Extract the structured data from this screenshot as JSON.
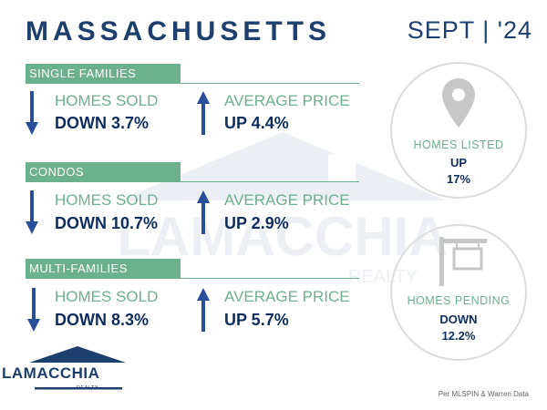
{
  "header": {
    "title": "MASSACHUSETTS",
    "date": "SEPT | '24"
  },
  "sections": [
    {
      "name": "SINGLE FAMILIES",
      "sold": {
        "label": "HOMES SOLD",
        "value": "DOWN 3.7%",
        "direction": "down"
      },
      "price": {
        "label": "AVERAGE PRICE",
        "value": "UP 4.4%",
        "direction": "up"
      }
    },
    {
      "name": "CONDOS",
      "sold": {
        "label": "HOMES SOLD",
        "value": "DOWN 10.7%",
        "direction": "down"
      },
      "price": {
        "label": "AVERAGE PRICE",
        "value": "UP 2.9%",
        "direction": "up"
      }
    },
    {
      "name": "MULTI-FAMILIES",
      "sold": {
        "label": "HOMES SOLD",
        "value": "DOWN 8.3%",
        "direction": "down"
      },
      "price": {
        "label": "AVERAGE PRICE",
        "value": "UP 5.7%",
        "direction": "up"
      }
    }
  ],
  "listed": {
    "label": "HOMES LISTED",
    "direction": "UP",
    "value": "17%",
    "icon": "map-pin-icon"
  },
  "pending": {
    "label": "HOMES PENDING",
    "direction": "DOWN",
    "value": "12.2%",
    "icon": "sale-sign-icon"
  },
  "logo": {
    "name": "LAMACCHIA",
    "sub": "REALTY"
  },
  "source": "Per MLSPIN & Warren Data",
  "colors": {
    "navy": "#1d3f6e",
    "green": "#6db08d",
    "arrow": "#2a4f9a"
  }
}
